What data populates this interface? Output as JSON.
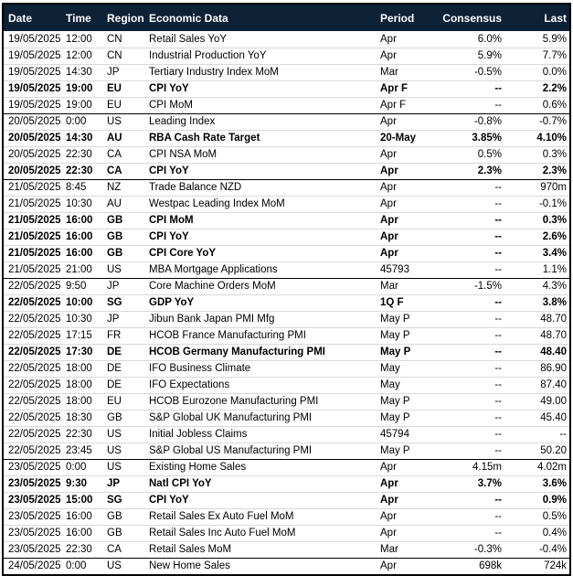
{
  "colors": {
    "header_bg": "#0d2137",
    "header_text": "#ffffff",
    "body_text": "#000000",
    "group_divider": "#000000",
    "row_divider": "#d9d9d9",
    "outer_border": "#000000"
  },
  "table": {
    "columns": [
      {
        "key": "date",
        "label": "Date"
      },
      {
        "key": "time",
        "label": "Time"
      },
      {
        "key": "region",
        "label": "Region"
      },
      {
        "key": "name",
        "label": "Economic Data"
      },
      {
        "key": "period",
        "label": "Period"
      },
      {
        "key": "consensus",
        "label": "Consensus"
      },
      {
        "key": "last",
        "label": "Last"
      }
    ],
    "rows": [
      {
        "date": "19/05/2025",
        "time": "12:00",
        "region": "CN",
        "name": "Retail Sales YoY",
        "period": "Apr",
        "consensus": "6.0%",
        "last": "5.9%",
        "bold": false,
        "group_start": false
      },
      {
        "date": "19/05/2025",
        "time": "12:00",
        "region": "CN",
        "name": "Industrial Production YoY",
        "period": "Apr",
        "consensus": "5.9%",
        "last": "7.7%",
        "bold": false,
        "group_start": false
      },
      {
        "date": "19/05/2025",
        "time": "14:30",
        "region": "JP",
        "name": "Tertiary Industry Index MoM",
        "period": "Mar",
        "consensus": "-0.5%",
        "last": "0.0%",
        "bold": false,
        "group_start": false
      },
      {
        "date": "19/05/2025",
        "time": "19:00",
        "region": "EU",
        "name": "CPI YoY",
        "period": "Apr F",
        "consensus": "--",
        "last": "2.2%",
        "bold": true,
        "group_start": false
      },
      {
        "date": "19/05/2025",
        "time": "19:00",
        "region": "EU",
        "name": "CPI MoM",
        "period": "Apr F",
        "consensus": "--",
        "last": "0.6%",
        "bold": false,
        "group_start": false
      },
      {
        "date": "20/05/2025",
        "time": "0:00",
        "region": "US",
        "name": "Leading Index",
        "period": "Apr",
        "consensus": "-0.8%",
        "last": "-0.7%",
        "bold": false,
        "group_start": true
      },
      {
        "date": "20/05/2025",
        "time": "14:30",
        "region": "AU",
        "name": "RBA Cash Rate Target",
        "period": "20-May",
        "consensus": "3.85%",
        "last": "4.10%",
        "bold": true,
        "group_start": false
      },
      {
        "date": "20/05/2025",
        "time": "22:30",
        "region": "CA",
        "name": "CPI NSA MoM",
        "period": "Apr",
        "consensus": "0.5%",
        "last": "0.3%",
        "bold": false,
        "group_start": false
      },
      {
        "date": "20/05/2025",
        "time": "22:30",
        "region": "CA",
        "name": "CPI YoY",
        "period": "Apr",
        "consensus": "2.3%",
        "last": "2.3%",
        "bold": true,
        "group_start": false
      },
      {
        "date": "21/05/2025",
        "time": "8:45",
        "region": "NZ",
        "name": "Trade Balance NZD",
        "period": "Apr",
        "consensus": "--",
        "last": "970m",
        "bold": false,
        "group_start": true
      },
      {
        "date": "21/05/2025",
        "time": "10:30",
        "region": "AU",
        "name": "Westpac Leading Index MoM",
        "period": "Apr",
        "consensus": "--",
        "last": "-0.1%",
        "bold": false,
        "group_start": false
      },
      {
        "date": "21/05/2025",
        "time": "16:00",
        "region": "GB",
        "name": "CPI MoM",
        "period": "Apr",
        "consensus": "--",
        "last": "0.3%",
        "bold": true,
        "group_start": false
      },
      {
        "date": "21/05/2025",
        "time": "16:00",
        "region": "GB",
        "name": "CPI YoY",
        "period": "Apr",
        "consensus": "--",
        "last": "2.6%",
        "bold": true,
        "group_start": false
      },
      {
        "date": "21/05/2025",
        "time": "16:00",
        "region": "GB",
        "name": "CPI Core YoY",
        "period": "Apr",
        "consensus": "--",
        "last": "3.4%",
        "bold": true,
        "group_start": false
      },
      {
        "date": "21/05/2025",
        "time": "21:00",
        "region": "US",
        "name": "MBA Mortgage Applications",
        "period": "45793",
        "consensus": "--",
        "last": "1.1%",
        "bold": false,
        "group_start": false
      },
      {
        "date": "22/05/2025",
        "time": "9:50",
        "region": "JP",
        "name": "Core Machine Orders MoM",
        "period": "Mar",
        "consensus": "-1.5%",
        "last": "4.3%",
        "bold": false,
        "group_start": true
      },
      {
        "date": "22/05/2025",
        "time": "10:00",
        "region": "SG",
        "name": "GDP YoY",
        "period": "1Q F",
        "consensus": "--",
        "last": "3.8%",
        "bold": true,
        "group_start": false
      },
      {
        "date": "22/05/2025",
        "time": "10:30",
        "region": "JP",
        "name": "Jibun Bank Japan PMI Mfg",
        "period": "May P",
        "consensus": "--",
        "last": "48.70",
        "bold": false,
        "group_start": false
      },
      {
        "date": "22/05/2025",
        "time": "17:15",
        "region": "FR",
        "name": "HCOB France Manufacturing PMI",
        "period": "May P",
        "consensus": "--",
        "last": "48.70",
        "bold": false,
        "group_start": false
      },
      {
        "date": "22/05/2025",
        "time": "17:30",
        "region": "DE",
        "name": "HCOB Germany Manufacturing PMI",
        "period": "May P",
        "consensus": "--",
        "last": "48.40",
        "bold": true,
        "group_start": false
      },
      {
        "date": "22/05/2025",
        "time": "18:00",
        "region": "DE",
        "name": "IFO Business Climate",
        "period": "May",
        "consensus": "--",
        "last": "86.90",
        "bold": false,
        "group_start": false
      },
      {
        "date": "22/05/2025",
        "time": "18:00",
        "region": "DE",
        "name": "IFO Expectations",
        "period": "May",
        "consensus": "--",
        "last": "87.40",
        "bold": false,
        "group_start": false
      },
      {
        "date": "22/05/2025",
        "time": "18:00",
        "region": "EU",
        "name": "HCOB Eurozone Manufacturing PMI",
        "period": "May P",
        "consensus": "--",
        "last": "49.00",
        "bold": false,
        "group_start": false
      },
      {
        "date": "22/05/2025",
        "time": "18:30",
        "region": "GB",
        "name": "S&P Global UK Manufacturing PMI",
        "period": "May P",
        "consensus": "--",
        "last": "45.40",
        "bold": false,
        "group_start": false
      },
      {
        "date": "22/05/2025",
        "time": "22:30",
        "region": "US",
        "name": "Initial Jobless Claims",
        "period": "45794",
        "consensus": "--",
        "last": "--",
        "bold": false,
        "group_start": false
      },
      {
        "date": "22/05/2025",
        "time": "23:45",
        "region": "US",
        "name": "S&P Global US Manufacturing PMI",
        "period": "May P",
        "consensus": "--",
        "last": "50.20",
        "bold": false,
        "group_start": false
      },
      {
        "date": "23/05/2025",
        "time": "0:00",
        "region": "US",
        "name": "Existing Home Sales",
        "period": "Apr",
        "consensus": "4.15m",
        "last": "4.02m",
        "bold": false,
        "group_start": true
      },
      {
        "date": "23/05/2025",
        "time": "9:30",
        "region": "JP",
        "name": "Natl CPI YoY",
        "period": "Apr",
        "consensus": "3.7%",
        "last": "3.6%",
        "bold": true,
        "group_start": false
      },
      {
        "date": "23/05/2025",
        "time": "15:00",
        "region": "SG",
        "name": "CPI YoY",
        "period": "Apr",
        "consensus": "--",
        "last": "0.9%",
        "bold": true,
        "group_start": false
      },
      {
        "date": "23/05/2025",
        "time": "16:00",
        "region": "GB",
        "name": "Retail Sales Ex Auto Fuel MoM",
        "period": "Apr",
        "consensus": "--",
        "last": "0.5%",
        "bold": false,
        "group_start": false
      },
      {
        "date": "23/05/2025",
        "time": "16:00",
        "region": "GB",
        "name": "Retail Sales Inc Auto Fuel MoM",
        "period": "Apr",
        "consensus": "--",
        "last": "0.4%",
        "bold": false,
        "group_start": false
      },
      {
        "date": "23/05/2025",
        "time": "22:30",
        "region": "CA",
        "name": "Retail Sales MoM",
        "period": "Mar",
        "consensus": "-0.3%",
        "last": "-0.4%",
        "bold": false,
        "group_start": false
      },
      {
        "date": "24/05/2025",
        "time": "0:00",
        "region": "US",
        "name": "New Home Sales",
        "period": "Apr",
        "consensus": "698k",
        "last": "724k",
        "bold": false,
        "group_start": true
      }
    ]
  }
}
